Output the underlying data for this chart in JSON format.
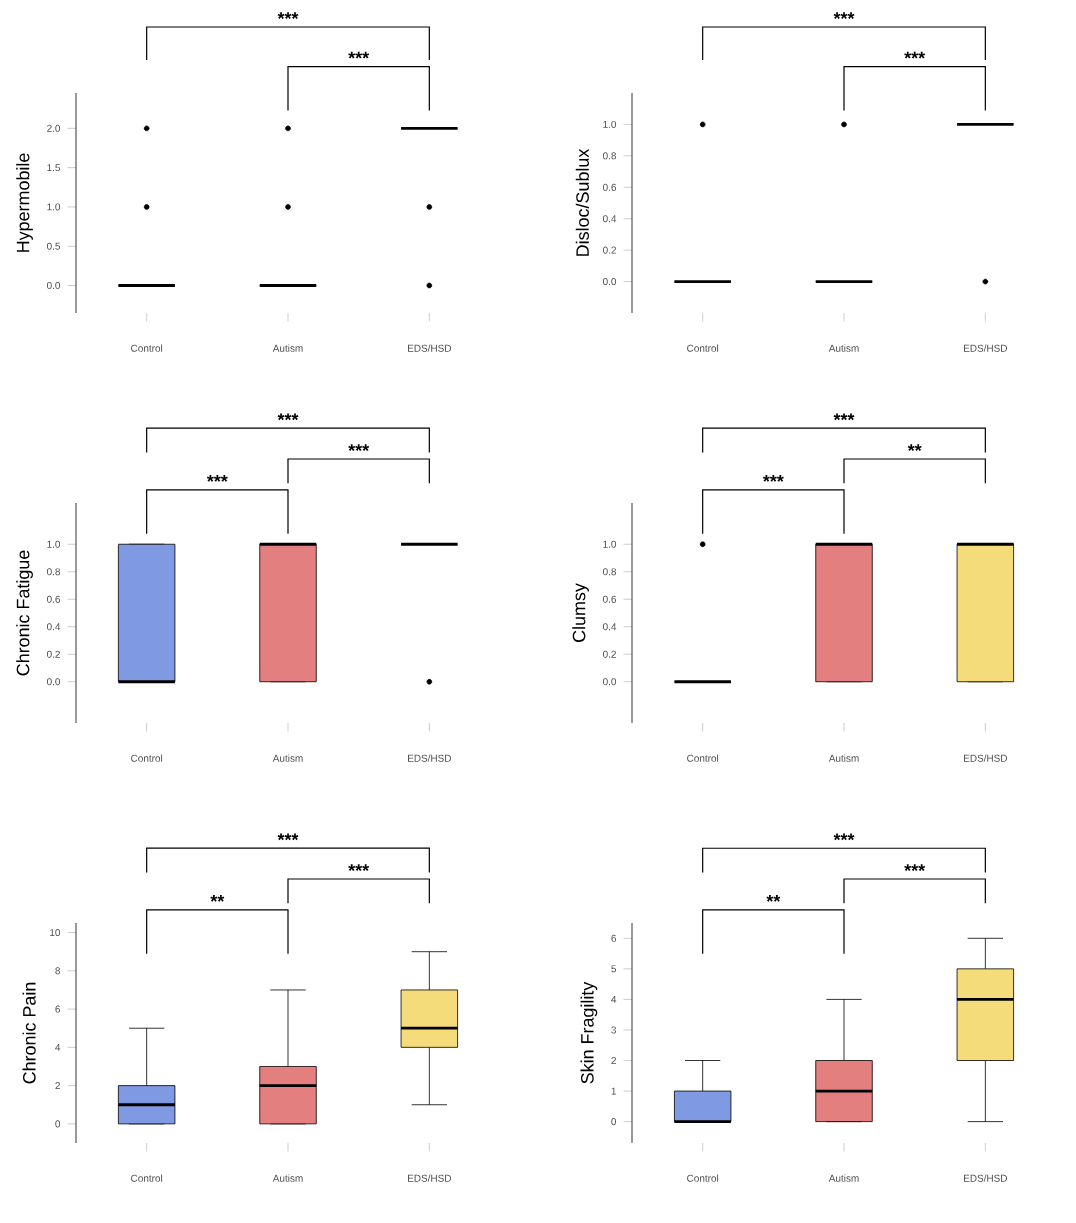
{
  "chart_data": [
    {
      "type": "box",
      "ylabel": "Hypermobile",
      "categories": [
        "Control",
        "Autism",
        "EDS/HSD"
      ],
      "colors": [
        "#7f9ae3",
        "#e37f7f",
        "#f5dc7a"
      ],
      "ylim": [
        -0.35,
        2.45
      ],
      "yticks": [
        {
          "value": 0,
          "label": "0.0"
        },
        {
          "value": 0.5,
          "label": "0.5"
        },
        {
          "value": 1,
          "label": "1.0"
        },
        {
          "value": 1.5,
          "label": "1.5"
        },
        {
          "value": 2,
          "label": "2.0"
        }
      ],
      "boxes": [
        {
          "low": 0,
          "q1": 0,
          "median": 0,
          "q3": 0,
          "high": 0,
          "outliers": [
            1,
            2
          ]
        },
        {
          "low": 0,
          "q1": 0,
          "median": 0,
          "q3": 0,
          "high": 0,
          "outliers": [
            1,
            2
          ]
        },
        {
          "low": 2,
          "q1": 2,
          "median": 2,
          "q3": 2,
          "high": 2,
          "outliers": [
            0,
            1
          ]
        }
      ],
      "annotations": [
        "***",
        "***"
      ]
    },
    {
      "type": "box",
      "ylabel": "Disloc/Sublux",
      "categories": [
        "Control",
        "Autism",
        "EDS/HSD"
      ],
      "colors": [
        "#7f9ae3",
        "#e37f7f",
        "#f5dc7a"
      ],
      "ylim": [
        -0.2,
        1.2
      ],
      "yticks": [
        {
          "value": 0,
          "label": "0.0"
        },
        {
          "value": 0.2,
          "label": "0.2"
        },
        {
          "value": 0.4,
          "label": "0.4"
        },
        {
          "value": 0.6,
          "label": "0.6"
        },
        {
          "value": 0.8,
          "label": "0.8"
        },
        {
          "value": 1,
          "label": "1.0"
        }
      ],
      "boxes": [
        {
          "low": 0,
          "q1": 0,
          "median": 0,
          "q3": 0,
          "high": 0,
          "outliers": [
            1
          ]
        },
        {
          "low": 0,
          "q1": 0,
          "median": 0,
          "q3": 0,
          "high": 0,
          "outliers": [
            1
          ]
        },
        {
          "low": 1,
          "q1": 1,
          "median": 1,
          "q3": 1,
          "high": 1,
          "outliers": [
            0
          ]
        }
      ],
      "annotations": [
        "***",
        "***"
      ]
    },
    {
      "type": "box",
      "ylabel": "Chronic Fatigue",
      "categories": [
        "Control",
        "Autism",
        "EDS/HSD"
      ],
      "colors": [
        "#7f9ae3",
        "#e37f7f",
        "#f5dc7a"
      ],
      "ylim": [
        -0.3,
        1.3
      ],
      "yticks": [
        {
          "value": 0,
          "label": "0.0"
        },
        {
          "value": 0.2,
          "label": "0.2"
        },
        {
          "value": 0.4,
          "label": "0.4"
        },
        {
          "value": 0.6,
          "label": "0.6"
        },
        {
          "value": 0.8,
          "label": "0.8"
        },
        {
          "value": 1,
          "label": "1.0"
        }
      ],
      "boxes": [
        {
          "low": 0,
          "q1": 0,
          "median": 0,
          "q3": 1,
          "high": 1
        },
        {
          "low": 0,
          "q1": 0,
          "median": 1,
          "q3": 1,
          "high": 1
        },
        {
          "low": 1,
          "q1": 1,
          "median": 1,
          "q3": 1,
          "high": 1,
          "outliers": [
            0
          ]
        }
      ],
      "annotations": [
        "***",
        "***",
        "***"
      ]
    },
    {
      "type": "box",
      "ylabel": "Clumsy",
      "categories": [
        "Control",
        "Autism",
        "EDS/HSD"
      ],
      "colors": [
        "#7f9ae3",
        "#e37f7f",
        "#f5dc7a"
      ],
      "ylim": [
        -0.3,
        1.3
      ],
      "yticks": [
        {
          "value": 0,
          "label": "0.0"
        },
        {
          "value": 0.2,
          "label": "0.2"
        },
        {
          "value": 0.4,
          "label": "0.4"
        },
        {
          "value": 0.6,
          "label": "0.6"
        },
        {
          "value": 0.8,
          "label": "0.8"
        },
        {
          "value": 1,
          "label": "1.0"
        }
      ],
      "boxes": [
        {
          "low": 0,
          "q1": 0,
          "median": 0,
          "q3": 0,
          "high": 0,
          "outliers": [
            1
          ]
        },
        {
          "low": 0,
          "q1": 0,
          "median": 1,
          "q3": 1,
          "high": 1
        },
        {
          "low": 0,
          "q1": 0,
          "median": 1,
          "q3": 1,
          "high": 1
        }
      ],
      "annotations": [
        "***",
        "**",
        "***"
      ]
    },
    {
      "type": "box",
      "ylabel": "Chronic Pain",
      "categories": [
        "Control",
        "Autism",
        "EDS/HSD"
      ],
      "colors": [
        "#7f9ae3",
        "#e37f7f",
        "#f5dc7a"
      ],
      "ylim": [
        -1,
        10.5
      ],
      "yticks": [
        0,
        2,
        4,
        6,
        8,
        10
      ],
      "boxes": [
        {
          "low": 0,
          "q1": 0,
          "median": 1,
          "q3": 2,
          "high": 5
        },
        {
          "low": 0,
          "q1": 0,
          "median": 2,
          "q3": 3,
          "high": 7
        },
        {
          "low": 1,
          "q1": 4,
          "median": 5,
          "q3": 7,
          "high": 9
        }
      ],
      "annotations": [
        "***",
        "***",
        "**"
      ]
    },
    {
      "type": "box",
      "ylabel": "Skin Fragility",
      "categories": [
        "Control",
        "Autism",
        "EDS/HSD"
      ],
      "colors": [
        "#7f9ae3",
        "#e37f7f",
        "#f5dc7a"
      ],
      "ylim": [
        -0.7,
        6.5
      ],
      "yticks": [
        0,
        1,
        2,
        3,
        4,
        5,
        6
      ],
      "boxes": [
        {
          "low": 0,
          "q1": 0,
          "median": 0,
          "q3": 1,
          "high": 2
        },
        {
          "low": 0,
          "q1": 0,
          "median": 1,
          "q3": 2,
          "high": 4
        },
        {
          "low": 0,
          "q1": 2,
          "median": 4,
          "q3": 5,
          "high": 6
        }
      ],
      "annotations": [
        "***",
        "***",
        "**"
      ]
    }
  ]
}
